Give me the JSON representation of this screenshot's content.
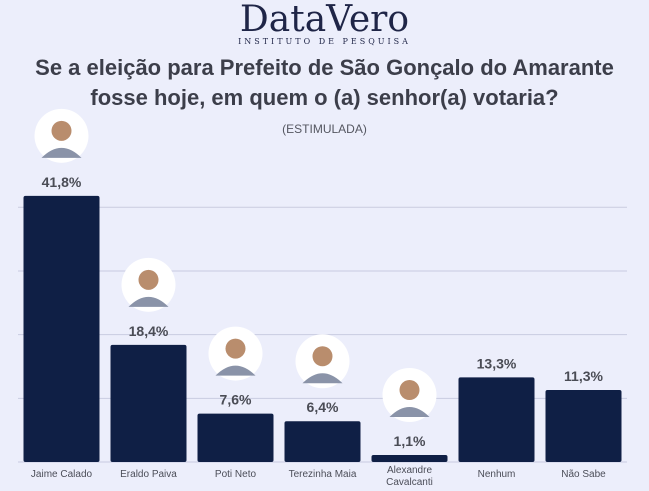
{
  "brand": {
    "name": "DataVero",
    "tagline": "INSTITUTO DE PESQUISA"
  },
  "header": {
    "title_line1": "Se a eleição para Prefeito de São Gonçalo do Amarante",
    "title_line2": "fosse hoje, em quem o (a) senhor(a) votaria?",
    "subtitle": "(ESTIMULADA)"
  },
  "colors": {
    "bar": "#0f1f45",
    "background": "#eceefb",
    "grid": "#c9cbe0",
    "value_label": "#4a4c55"
  },
  "chart_data": {
    "type": "bar",
    "categories": [
      "Jaime Calado",
      "Eraldo Paiva",
      "Poti Neto",
      "Terezinha Maia",
      "Alexandre Cavalcanti",
      "Nenhum",
      "Não Sabe"
    ],
    "values": [
      41.8,
      18.4,
      7.6,
      6.4,
      1.1,
      13.3,
      11.3
    ],
    "value_labels": [
      "41,8%",
      "18,4%",
      "7,6%",
      "6,4%",
      "1,1%",
      "13,3%",
      "11,3%"
    ],
    "has_photo": [
      true,
      true,
      true,
      true,
      true,
      false,
      false
    ],
    "ylim": [
      0,
      49
    ],
    "grid": true,
    "title": "Se a eleição para Prefeito de São Gonçalo do Amarante fosse hoje, em quem o (a) senhor(a) votaria?",
    "xlabel": "",
    "ylabel": ""
  }
}
